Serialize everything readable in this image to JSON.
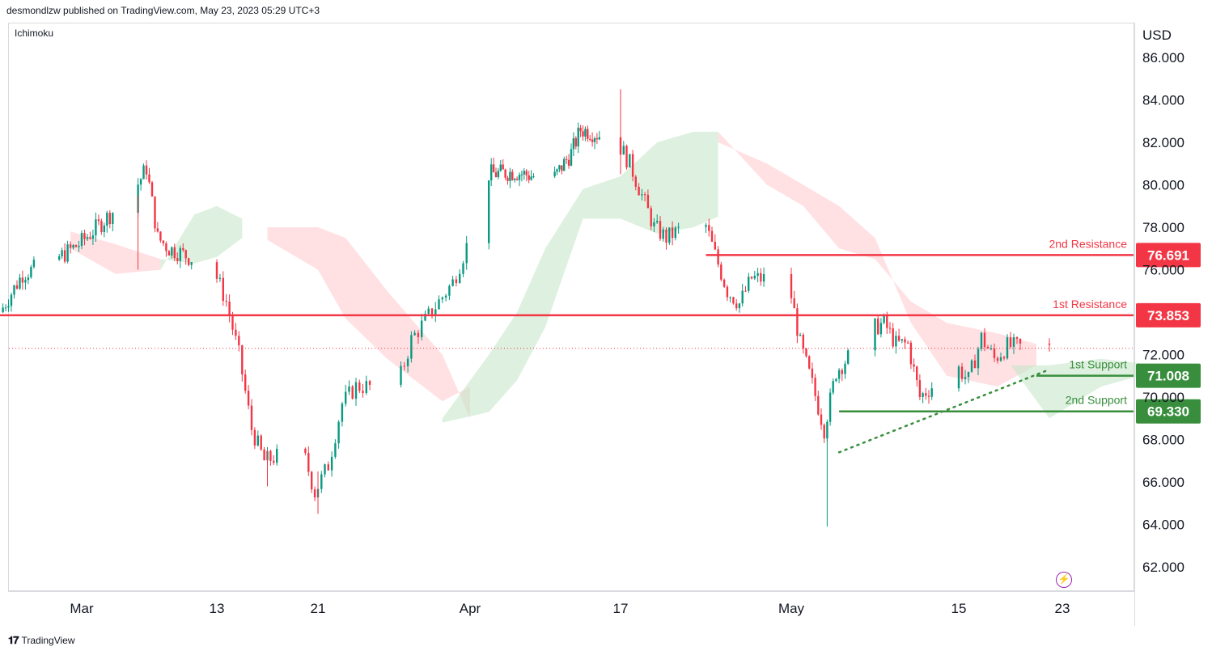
{
  "header": {
    "publisher_line": "desmondlzw published on TradingView.com, May 23, 2023 05:29 UTC+3"
  },
  "indicator_label": "Ichimoku",
  "currency": "USD",
  "footer": {
    "brand": "TradingView",
    "logo_icon": "tradingview-logo-icon"
  },
  "chart_data": {
    "type": "candlestick",
    "price_axis": {
      "ticks": [
        "86.000",
        "84.000",
        "82.000",
        "80.000",
        "78.000",
        "76.000",
        "72.000",
        "70.000",
        "68.000",
        "66.000",
        "64.000",
        "62.000"
      ],
      "ylim": [
        60.9,
        87.6
      ]
    },
    "time_axis": {
      "labels": [
        "Mar",
        "13",
        "21",
        "Apr",
        "17",
        "May",
        "15",
        "23"
      ]
    },
    "levels": [
      {
        "name": "2nd Resistance",
        "value": 76.691,
        "value_label": "76.691",
        "color": "#f23645"
      },
      {
        "name": "1st Resistance",
        "value": 73.853,
        "value_label": "73.853",
        "color": "#f23645"
      },
      {
        "name": "1st Support",
        "value": 71.008,
        "value_label": "71.008",
        "color": "#388e3c"
      },
      {
        "name": "2nd Support",
        "value": 69.33,
        "value_label": "69.330",
        "color": "#388e3c"
      }
    ],
    "last_price": 72.3,
    "price_path": [
      [
        "2023-02-22",
        74.0
      ],
      [
        "2023-02-24",
        75.8
      ],
      [
        "2023-02-27",
        76.5
      ],
      [
        "2023-03-01",
        77.2
      ],
      [
        "2023-03-03",
        78.2
      ],
      [
        "2023-03-06",
        79.8
      ],
      [
        "2023-03-07",
        80.8
      ],
      [
        "2023-03-08",
        77.5
      ],
      [
        "2023-03-09",
        77.0
      ],
      [
        "2023-03-10",
        76.8
      ],
      [
        "2023-03-13",
        76.0
      ],
      [
        "2023-03-14",
        74.5
      ],
      [
        "2023-03-15",
        72.0
      ],
      [
        "2023-03-16",
        68.5
      ],
      [
        "2023-03-17",
        67.0
      ],
      [
        "2023-03-20",
        67.6
      ],
      [
        "2023-03-21",
        65.5
      ],
      [
        "2023-03-22",
        66.8
      ],
      [
        "2023-03-23",
        69.7
      ],
      [
        "2023-03-24",
        70.5
      ],
      [
        "2023-03-27",
        70.5
      ],
      [
        "2023-03-28",
        72.7
      ],
      [
        "2023-03-29",
        73.6
      ],
      [
        "2023-03-30",
        74.5
      ],
      [
        "2023-03-31",
        75.4
      ],
      [
        "2023-04-03",
        80.5
      ],
      [
        "2023-04-06",
        80.6
      ],
      [
        "2023-04-10",
        80.2
      ],
      [
        "2023-04-12",
        81.5
      ],
      [
        "2023-04-13",
        82.6
      ],
      [
        "2023-04-14",
        82.5
      ],
      [
        "2023-04-17",
        82.0
      ],
      [
        "2023-04-18",
        81.0
      ],
      [
        "2023-04-19",
        79.5
      ],
      [
        "2023-04-20",
        78.0
      ],
      [
        "2023-04-21",
        77.5
      ],
      [
        "2023-04-24",
        78.5
      ],
      [
        "2023-04-25",
        76.7
      ],
      [
        "2023-04-26",
        75.0
      ],
      [
        "2023-04-27",
        74.4
      ],
      [
        "2023-04-28",
        75.6
      ],
      [
        "2023-05-01",
        75.5
      ],
      [
        "2023-05-02",
        72.5
      ],
      [
        "2023-05-03",
        70.6
      ],
      [
        "2023-05-04",
        68.5
      ],
      [
        "2023-05-05",
        71.2
      ],
      [
        "2023-05-08",
        73.2
      ],
      [
        "2023-05-09",
        73.5
      ],
      [
        "2023-05-10",
        72.5
      ],
      [
        "2023-05-11",
        72.5
      ],
      [
        "2023-05-12",
        70.0
      ],
      [
        "2023-05-15",
        71.5
      ],
      [
        "2023-05-16",
        70.8
      ],
      [
        "2023-05-17",
        72.8
      ],
      [
        "2023-05-18",
        71.8
      ],
      [
        "2023-05-19",
        72.4
      ],
      [
        "2023-05-22",
        72.3
      ]
    ]
  },
  "colors": {
    "up": "#089981",
    "down": "#f23645",
    "resistance": "#f23645",
    "support": "#388e3c",
    "cloud_bull": "#c8e6c9",
    "cloud_bear": "#ffcdd2"
  }
}
